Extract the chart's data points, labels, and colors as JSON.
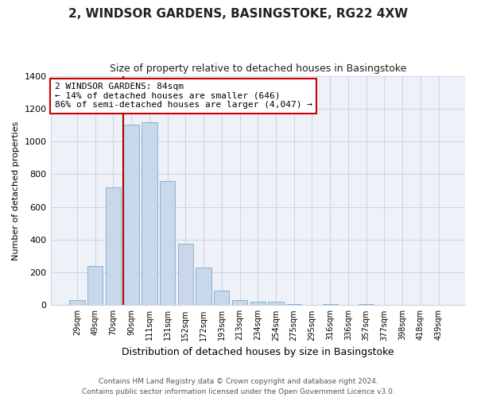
{
  "title": "2, WINDSOR GARDENS, BASINGSTOKE, RG22 4XW",
  "subtitle": "Size of property relative to detached houses in Basingstoke",
  "xlabel": "Distribution of detached houses by size in Basingstoke",
  "ylabel": "Number of detached properties",
  "bar_labels": [
    "29sqm",
    "49sqm",
    "70sqm",
    "90sqm",
    "111sqm",
    "131sqm",
    "152sqm",
    "172sqm",
    "193sqm",
    "213sqm",
    "234sqm",
    "254sqm",
    "275sqm",
    "295sqm",
    "316sqm",
    "336sqm",
    "357sqm",
    "377sqm",
    "398sqm",
    "418sqm",
    "439sqm"
  ],
  "bar_values": [
    30,
    240,
    720,
    1100,
    1115,
    760,
    375,
    230,
    90,
    30,
    20,
    20,
    5,
    0,
    5,
    0,
    5,
    0,
    0,
    0,
    0
  ],
  "bar_color": "#c8d8ea",
  "bar_edge_color": "#8ab0cc",
  "vline_x_idx": 3,
  "vline_color": "#aa0000",
  "annotation_line1": "2 WINDSOR GARDENS: 84sqm",
  "annotation_line2": "← 14% of detached houses are smaller (646)",
  "annotation_line3": "86% of semi-detached houses are larger (4,047) →",
  "annotation_box_color": "#ffffff",
  "annotation_box_edge": "#cc0000",
  "ylim": [
    0,
    1400
  ],
  "yticks": [
    0,
    200,
    400,
    600,
    800,
    1000,
    1200,
    1400
  ],
  "footer_line1": "Contains HM Land Registry data © Crown copyright and database right 2024.",
  "footer_line2": "Contains public sector information licensed under the Open Government Licence v3.0.",
  "bg_color": "#ffffff",
  "plot_bg_color": "#eef2f8",
  "grid_color": "#c8d4e4",
  "title_fontsize": 11,
  "subtitle_fontsize": 9
}
